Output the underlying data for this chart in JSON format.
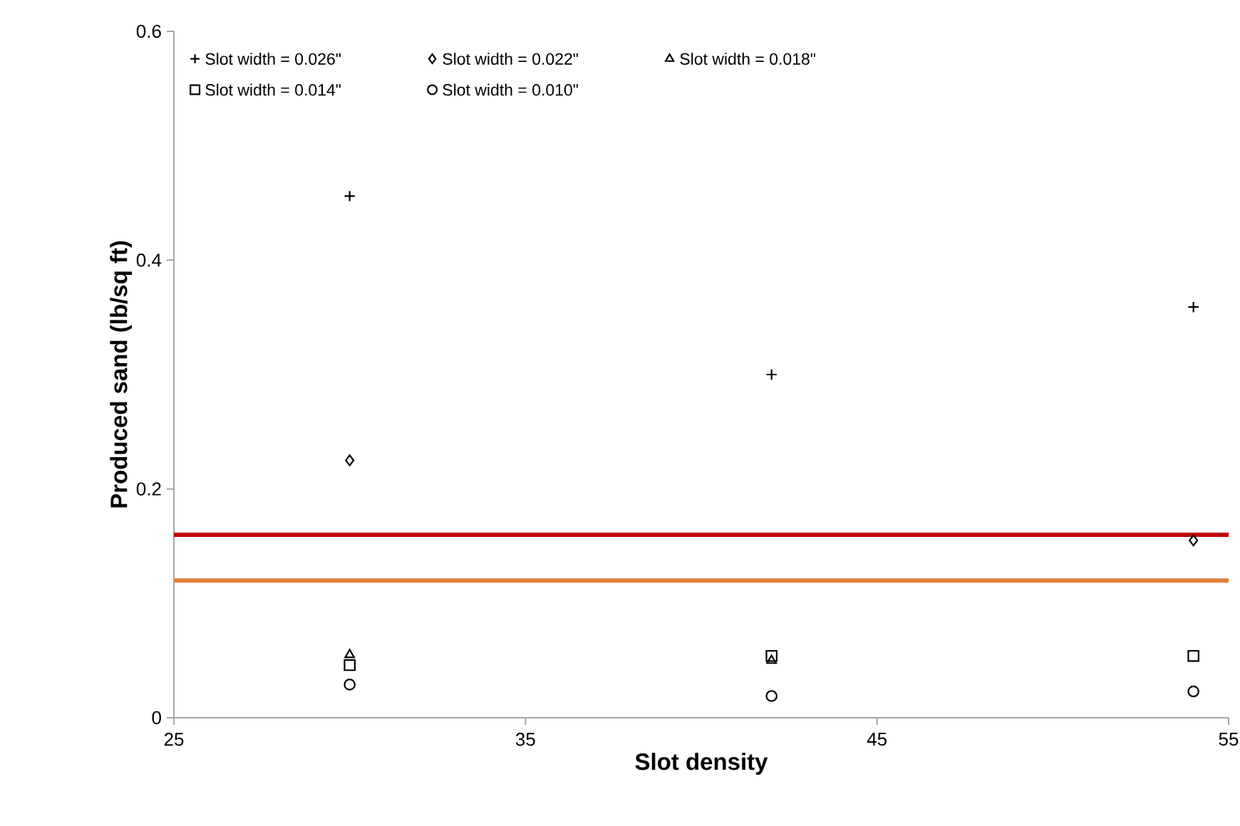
{
  "chart_data": {
    "type": "scatter",
    "xlabel": "Slot density",
    "ylabel": "Produced sand (lb/sq ft)",
    "x": [
      30,
      42,
      54
    ],
    "series": [
      {
        "name": "Slot width = 0.026\"",
        "color": "#000000",
        "marker": "cross",
        "values": [
          0.456,
          0.3,
          0.359
        ]
      },
      {
        "name": "Slot width = 0.022\"",
        "color": "#000000",
        "marker": "diamond",
        "values": [
          0.225,
          null,
          0.155
        ]
      },
      {
        "name": "Slot width = 0.018\"",
        "color": "#000000",
        "marker": "triangle",
        "values": [
          0.055,
          0.05,
          null
        ]
      },
      {
        "name": "Slot width = 0.014\"",
        "color": "#000000",
        "marker": "square",
        "values": [
          0.046,
          0.054,
          0.054
        ]
      },
      {
        "name": "Slot width = 0.010\"",
        "color": "#000000",
        "marker": "circle",
        "values": [
          0.029,
          0.019,
          0.023
        ]
      }
    ],
    "xlim": [
      25,
      55
    ],
    "xticks": [
      25,
      35,
      45,
      55
    ],
    "ylim": [
      0,
      0.6
    ],
    "yticks": [
      0,
      0.2,
      0.4,
      0.6
    ],
    "ref_lines": [
      {
        "axis": "y",
        "value": 0.16,
        "color": "#c00000"
      },
      {
        "axis": "y",
        "value": 0.12,
        "color": "#e0803a"
      }
    ],
    "grid": false,
    "legend": "top"
  }
}
